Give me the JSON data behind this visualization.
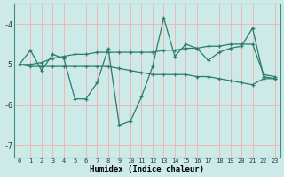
{
  "title": "",
  "xlabel": "Humidex (Indice chaleur)",
  "ylabel": "",
  "background_color": "#cceae7",
  "grid_color": "#f0b0b0",
  "line_color": "#2d7a6e",
  "xlim": [
    -0.5,
    23.5
  ],
  "ylim": [
    -7.3,
    -3.5
  ],
  "yticks": [
    -7,
    -6,
    -5,
    -4
  ],
  "xticks": [
    0,
    1,
    2,
    3,
    4,
    5,
    6,
    7,
    8,
    9,
    10,
    11,
    12,
    13,
    14,
    15,
    16,
    17,
    18,
    19,
    20,
    21,
    22,
    23
  ],
  "line1_x": [
    0,
    1,
    2,
    3,
    4,
    5,
    6,
    7,
    8,
    9,
    10,
    11,
    12,
    13,
    14,
    15,
    16,
    17,
    18,
    19,
    20,
    21,
    22,
    23
  ],
  "line1_y": [
    -5.0,
    -4.65,
    -5.15,
    -4.75,
    -4.85,
    -5.85,
    -5.85,
    -5.45,
    -4.6,
    -6.5,
    -6.4,
    -5.8,
    -5.05,
    -3.85,
    -4.8,
    -4.5,
    -4.6,
    -4.9,
    -4.7,
    -4.6,
    -4.55,
    -4.1,
    -5.3,
    -5.35
  ],
  "line2_x": [
    0,
    1,
    2,
    3,
    4,
    5,
    6,
    7,
    8,
    9,
    10,
    11,
    12,
    13,
    14,
    15,
    16,
    17,
    18,
    19,
    20,
    21,
    22,
    23
  ],
  "line2_y": [
    -5.0,
    -5.0,
    -4.95,
    -4.85,
    -4.8,
    -4.75,
    -4.75,
    -4.7,
    -4.7,
    -4.7,
    -4.7,
    -4.7,
    -4.7,
    -4.65,
    -4.65,
    -4.6,
    -4.6,
    -4.55,
    -4.55,
    -4.5,
    -4.5,
    -4.5,
    -5.25,
    -5.3
  ],
  "line3_x": [
    0,
    1,
    2,
    3,
    4,
    5,
    6,
    7,
    8,
    9,
    10,
    11,
    12,
    13,
    14,
    15,
    16,
    17,
    18,
    19,
    20,
    21,
    22,
    23
  ],
  "line3_y": [
    -5.0,
    -5.05,
    -5.05,
    -5.05,
    -5.05,
    -5.05,
    -5.05,
    -5.05,
    -5.05,
    -5.1,
    -5.15,
    -5.2,
    -5.25,
    -5.25,
    -5.25,
    -5.25,
    -5.3,
    -5.3,
    -5.35,
    -5.4,
    -5.45,
    -5.5,
    -5.35,
    -5.35
  ]
}
